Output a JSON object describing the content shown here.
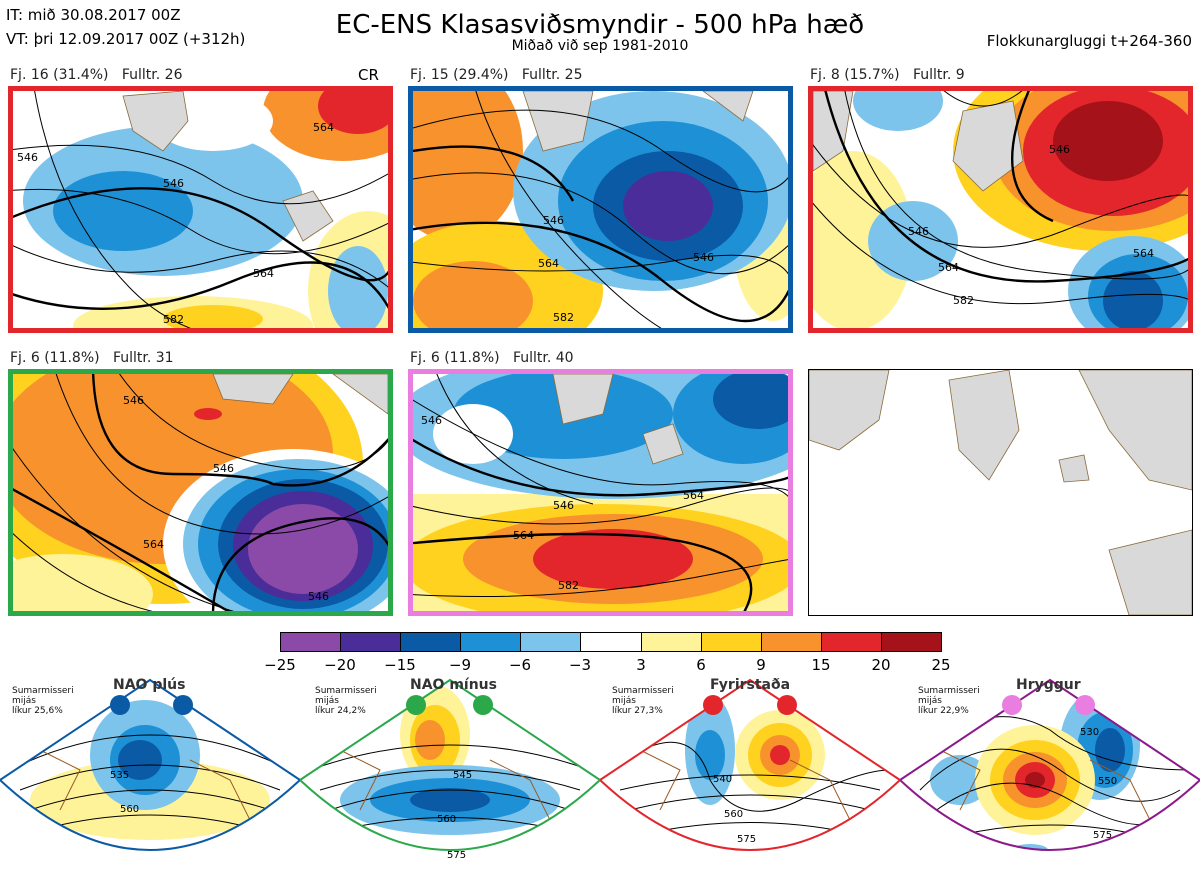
{
  "header": {
    "line1": "IT: mið 30.08.2017 00Z",
    "line2": "VT: þri 12.09.2017 00Z  (+312h)",
    "title": "EC-ENS Klasasviðsmyndir - 500 hPa hæð",
    "subtitle": "Miðað við sep 1981-2010",
    "window": "Flokkunargluggi t+264-360"
  },
  "panels": [
    {
      "label": "Fj. 16 (31.4%)   Fulltr. 26",
      "tag": "CR",
      "border": "#e3262b",
      "contours": [
        "546",
        "564",
        "546",
        "564",
        "582"
      ]
    },
    {
      "label": "Fj. 15 (29.4%)   Fulltr. 25",
      "tag": "",
      "border": "#0b5aa6",
      "contours": [
        "546",
        "564",
        "546",
        "582"
      ]
    },
    {
      "label": "Fj. 8 (15.7%)   Fulltr. 9",
      "tag": "",
      "border": "#e3262b",
      "contours": [
        "546",
        "564",
        "546",
        "564",
        "582"
      ]
    },
    {
      "label": "Fj. 6 (11.8%)   Fulltr. 31",
      "tag": "",
      "border": "#2aa84a",
      "contours": [
        "546",
        "546",
        "564",
        "546"
      ]
    },
    {
      "label": "Fj. 6 (11.8%)   Fulltr. 40",
      "tag": "",
      "border": "#e97de0",
      "contours": [
        "546",
        "546",
        "564",
        "564",
        "582"
      ]
    }
  ],
  "colorbar": {
    "colors": [
      "#8b4aa8",
      "#4a2d99",
      "#0b5aa6",
      "#1e91d6",
      "#7cc4ec",
      "#ffffff",
      "#fff39a",
      "#ffd21f",
      "#f7922d",
      "#e3262b",
      "#a5121a"
    ],
    "ticks": [
      "−25",
      "−20",
      "−15",
      "−9",
      "−6",
      "−3",
      "3",
      "6",
      "9",
      "15",
      "20",
      "25"
    ]
  },
  "regimes": [
    {
      "name": "NAO plús",
      "note1": "Sumarmisseri",
      "note2": "mijás",
      "note3": "líkur 25,6%",
      "color": "#0b5aa6",
      "contours": [
        "535",
        "560"
      ]
    },
    {
      "name": "NAO mínus",
      "note1": "Sumarmisseri",
      "note2": "mijás",
      "note3": "líkur 24,2%",
      "color": "#2aa84a",
      "contours": [
        "545",
        "560",
        "575"
      ]
    },
    {
      "name": "Fyrirstaða",
      "note1": "Sumarmisseri",
      "note2": "mijás",
      "note3": "líkur 27,3%",
      "color": "#e3262b",
      "contours": [
        "540",
        "560",
        "575"
      ]
    },
    {
      "name": "Hryggur",
      "note1": "Sumarmisseri",
      "note2": "mijás",
      "note3": "líkur 22,9%",
      "color": "#e97de0",
      "contours": [
        "530",
        "550",
        "575"
      ]
    }
  ]
}
